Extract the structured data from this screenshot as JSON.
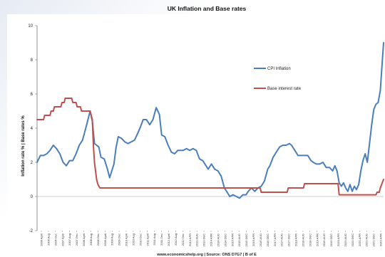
{
  "chart_data": {
    "type": "line",
    "title": "UK Inflation and Base rates",
    "ylabel": "Inflation rate % | Base rates %",
    "ylim": [
      -2,
      10
    ],
    "yticks": [
      -2,
      0,
      2,
      4,
      6,
      8,
      10
    ],
    "grid": false,
    "legend_position": "right",
    "source": "www.economicshelp.org | Source: ONS D7G7 | B of E",
    "x_tick_labels": [
      "2006 April",
      "2006 Aug",
      "2006 Dec",
      "2007 April",
      "2007 Aug",
      "2007 Dec",
      "2008 April",
      "2008 Aug",
      "2008 Dec",
      "2009 April",
      "2009 Aug",
      "2009 Dec",
      "2010 April",
      "2010 Aug",
      "2010 Dec",
      "2011 April",
      "2011 Aug",
      "2011 Dec",
      "2012 April",
      "2012 Aug",
      "2012 Dec",
      "2013 APR",
      "2013 AUG",
      "2013 DEC",
      "2014 APR",
      "2014 AUG",
      "2014 DEC",
      "2015 APR",
      "2015 AUG",
      "2015 DEC",
      "2016 APR",
      "2016 AUG",
      "2016 DEC",
      "2017 APR",
      "2017 AUG",
      "2017 DEC",
      "2018 APR",
      "2018 AUG",
      "2018 DEC",
      "2019 APR",
      "2019 AUG",
      "2019 DEC",
      "2020 APR",
      "2020 AUG",
      "2020 DEC",
      "2021 APR",
      "2021 AUG",
      "2021 DEC",
      "2022 APR"
    ],
    "x_start": 2006.25,
    "x_end": 2022.25,
    "series": [
      {
        "name": "CPI Inflation",
        "color": "#4a7ebb",
        "x": [
          2006.25,
          2006.4,
          2006.55,
          2006.7,
          2006.85,
          2007.0,
          2007.15,
          2007.3,
          2007.45,
          2007.6,
          2007.75,
          2007.9,
          2008.05,
          2008.2,
          2008.35,
          2008.5,
          2008.6,
          2008.7,
          2008.8,
          2008.9,
          2009.0,
          2009.1,
          2009.2,
          2009.35,
          2009.5,
          2009.6,
          2009.7,
          2009.8,
          2009.9,
          2010.0,
          2010.15,
          2010.3,
          2010.45,
          2010.6,
          2010.75,
          2010.9,
          2011.0,
          2011.15,
          2011.3,
          2011.45,
          2011.6,
          2011.75,
          2011.9,
          2012.0,
          2012.15,
          2012.3,
          2012.45,
          2012.6,
          2012.75,
          2012.9,
          2013.0,
          2013.15,
          2013.3,
          2013.45,
          2013.6,
          2013.75,
          2013.9,
          2014.0,
          2014.15,
          2014.3,
          2014.45,
          2014.6,
          2014.75,
          2014.9,
          2015.0,
          2015.15,
          2015.3,
          2015.45,
          2015.6,
          2015.75,
          2015.9,
          2016.0,
          2016.15,
          2016.3,
          2016.45,
          2016.6,
          2016.75,
          2016.9,
          2017.0,
          2017.15,
          2017.3,
          2017.45,
          2017.6,
          2017.75,
          2017.9,
          2018.0,
          2018.15,
          2018.3,
          2018.45,
          2018.6,
          2018.75,
          2018.9,
          2019.0,
          2019.15,
          2019.3,
          2019.45,
          2019.6,
          2019.75,
          2019.9,
          2020.0,
          2020.1,
          2020.2,
          2020.3,
          2020.4,
          2020.5,
          2020.6,
          2020.7,
          2020.8,
          2020.9,
          2021.0,
          2021.1,
          2021.2,
          2021.3,
          2021.4,
          2021.5,
          2021.6,
          2021.7,
          2021.8,
          2021.9,
          2022.0,
          2022.1,
          2022.25
        ],
        "y": [
          2.0,
          2.4,
          2.4,
          2.5,
          2.7,
          3.0,
          2.8,
          2.5,
          2.0,
          1.8,
          2.1,
          2.1,
          2.5,
          3.0,
          3.3,
          4.0,
          4.5,
          5.0,
          4.4,
          3.1,
          3.0,
          2.9,
          2.3,
          2.2,
          1.6,
          1.1,
          1.5,
          1.9,
          2.9,
          3.5,
          3.4,
          3.2,
          3.1,
          3.2,
          3.3,
          3.7,
          4.0,
          4.5,
          4.5,
          4.2,
          4.5,
          5.2,
          4.8,
          3.6,
          3.5,
          3.0,
          2.6,
          2.5,
          2.7,
          2.7,
          2.7,
          2.8,
          2.7,
          2.8,
          2.7,
          2.2,
          2.1,
          1.9,
          1.6,
          1.9,
          1.6,
          1.5,
          1.2,
          0.5,
          0.3,
          0.0,
          0.1,
          0.0,
          -0.1,
          0.1,
          0.1,
          0.3,
          0.5,
          0.3,
          0.5,
          0.6,
          0.9,
          1.6,
          1.8,
          2.3,
          2.6,
          2.9,
          3.0,
          3.0,
          3.1,
          3.0,
          2.7,
          2.4,
          2.4,
          2.4,
          2.4,
          2.1,
          2.0,
          1.9,
          1.9,
          2.0,
          1.7,
          1.7,
          1.5,
          1.8,
          1.5,
          0.8,
          0.6,
          0.8,
          0.5,
          0.3,
          0.7,
          0.3,
          0.6,
          0.4,
          0.7,
          1.5,
          2.1,
          2.5,
          2.0,
          3.1,
          4.2,
          5.1,
          5.4,
          5.5,
          6.2,
          9.0
        ]
      },
      {
        "name": "Base interest rate",
        "color": "#c0504d",
        "x": [
          2006.25,
          2006.55,
          2006.6,
          2006.85,
          2006.9,
          2007.0,
          2007.05,
          2007.35,
          2007.4,
          2007.5,
          2007.55,
          2007.85,
          2007.9,
          2008.05,
          2008.1,
          2008.25,
          2008.3,
          2008.7,
          2008.8,
          2008.85,
          2008.9,
          2008.95,
          2009.0,
          2009.05,
          2009.1,
          2009.15,
          2009.2,
          2016.55,
          2016.6,
          2017.8,
          2017.85,
          2018.55,
          2018.6,
          2020.15,
          2020.2,
          2021.9,
          2021.95,
          2022.05,
          2022.1,
          2022.25
        ],
        "y": [
          4.5,
          4.5,
          4.75,
          4.75,
          5.0,
          5.0,
          5.25,
          5.25,
          5.5,
          5.5,
          5.75,
          5.75,
          5.5,
          5.5,
          5.25,
          5.25,
          5.0,
          5.0,
          4.5,
          3.0,
          2.0,
          1.5,
          1.0,
          0.75,
          0.6,
          0.5,
          0.5,
          0.5,
          0.25,
          0.25,
          0.5,
          0.5,
          0.75,
          0.75,
          0.1,
          0.1,
          0.25,
          0.25,
          0.5,
          1.0
        ]
      }
    ]
  }
}
